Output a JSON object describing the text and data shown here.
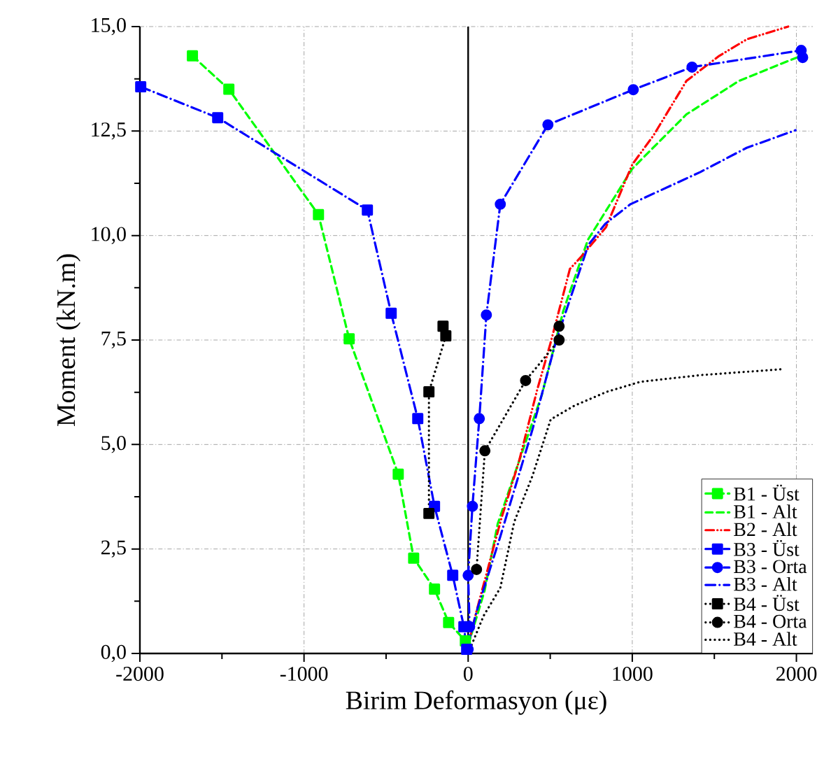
{
  "chart_data": {
    "type": "line",
    "xlabel": "Birim Deformasyon (με)",
    "ylabel": "Moment (kN.m)",
    "xlim": [
      -2000,
      2100
    ],
    "ylim": [
      0,
      15
    ],
    "xticks": [
      -2000,
      -1000,
      0,
      1000,
      2000
    ],
    "yticks": [
      {
        "value": 0,
        "label": "0,0"
      },
      {
        "value": 2.5,
        "label": "2,5"
      },
      {
        "value": 5,
        "label": "5,0"
      },
      {
        "value": 7.5,
        "label": "7,5"
      },
      {
        "value": 10,
        "label": "10,0"
      },
      {
        "value": 12.5,
        "label": "12,5"
      },
      {
        "value": 15,
        "label": "15,0"
      }
    ],
    "grid": true,
    "legend": "bottom right",
    "ref_lines": [
      {
        "axis": "x",
        "value": 0,
        "color": "#000000",
        "line_style": "solid"
      }
    ],
    "series": [
      {
        "name": "B1 - Üst",
        "color": "#00ff00",
        "marker": "square",
        "line_style": "dashed",
        "x": [
          -1680,
          -1458,
          -912,
          -725,
          -426,
          -332,
          -205,
          -119,
          -17
        ],
        "values": [
          14.3,
          13.5,
          10.5,
          7.53,
          4.29,
          2.28,
          1.54,
          0.74,
          0.3
        ]
      },
      {
        "name": "B1 - Alt",
        "color": "#00ff00",
        "marker": "none",
        "line_style": "dashed",
        "x": [
          0,
          100,
          180,
          310,
          450,
          580,
          730,
          1000,
          1330,
          1650,
          1900,
          2030
        ],
        "values": [
          0.2,
          1.5,
          3.1,
          4.6,
          6.2,
          8.2,
          9.9,
          11.6,
          12.9,
          13.7,
          14.1,
          14.3
        ]
      },
      {
        "name": "B2 - Alt",
        "color": "#ff0000",
        "marker": "none",
        "line_style": "dashdotdot",
        "x": [
          0,
          50,
          200,
          310,
          420,
          500,
          560,
          620,
          690,
          840,
          1000,
          1130,
          1330,
          1530,
          1700,
          1950
        ],
        "values": [
          0.2,
          1.0,
          3.2,
          4.6,
          6.3,
          7.4,
          8.3,
          9.2,
          9.5,
          10.2,
          11.7,
          12.4,
          13.7,
          14.3,
          14.7,
          15.0
        ]
      },
      {
        "name": "B3 - Üst",
        "color": "#0000ff",
        "marker": "square",
        "line_style": "dashdot",
        "x": [
          -1995,
          -1526,
          -614,
          -469,
          -307,
          -205,
          -94,
          -26,
          -9
        ],
        "values": [
          13.56,
          12.82,
          10.61,
          8.14,
          5.62,
          3.52,
          1.87,
          0.64,
          0.1
        ]
      },
      {
        "name": "B3 - Orta",
        "color": "#0000ff",
        "marker": "circle",
        "line_style": "dashdot",
        "x": [
          0,
          9,
          0,
          26,
          68,
          111,
          196,
          486,
          1006,
          1364,
          2029,
          2038
        ],
        "values": [
          0.1,
          0.64,
          1.87,
          3.52,
          5.62,
          8.1,
          10.75,
          12.65,
          13.49,
          14.03,
          14.43,
          14.26
        ]
      },
      {
        "name": "B3 - Alt",
        "color": "#0000ff",
        "marker": "none",
        "line_style": "dashdot",
        "x": [
          0,
          51,
          196,
          392,
          537,
          733,
          835,
          989,
          1415,
          1697,
          1995
        ],
        "values": [
          0.2,
          1.0,
          2.8,
          5.36,
          7.5,
          9.78,
          10.28,
          10.75,
          11.52,
          12.1,
          12.52
        ]
      },
      {
        "name": "B4 - Üst",
        "color": "#000000",
        "marker": "square",
        "line_style": "dotted",
        "x": [
          -239,
          -239,
          -136,
          -153
        ],
        "values": [
          3.35,
          6.26,
          7.6,
          7.83
        ]
      },
      {
        "name": "B4 - Orta",
        "color": "#000000",
        "marker": "circle",
        "line_style": "dotted",
        "x": [
          51,
          102,
          350,
          554,
          554
        ],
        "values": [
          2.01,
          4.85,
          6.53,
          7.5,
          7.83
        ]
      },
      {
        "name": "B4 - Alt",
        "color": "#000000",
        "marker": "none",
        "line_style": "dotted",
        "x": [
          0,
          94,
          196,
          281,
          392,
          503,
          648,
          844,
          1049,
          1415,
          1910
        ],
        "values": [
          0,
          0.9,
          1.57,
          3.15,
          4.25,
          5.6,
          5.93,
          6.26,
          6.5,
          6.66,
          6.8
        ]
      }
    ]
  }
}
